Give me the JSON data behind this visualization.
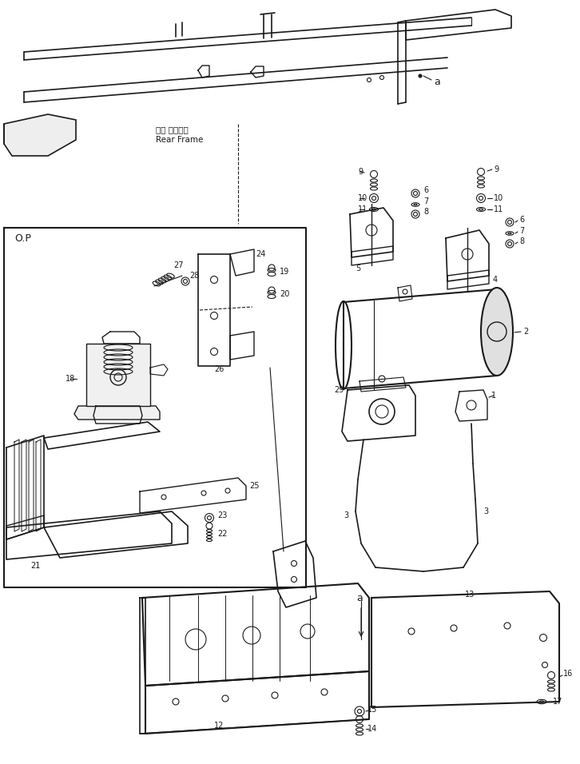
{
  "bg_color": "#ffffff",
  "lc": "#1a1a1a",
  "rear_frame_jp": "リヤ フレーム",
  "rear_frame_en": "Rear Frame",
  "op_label": "O.P"
}
